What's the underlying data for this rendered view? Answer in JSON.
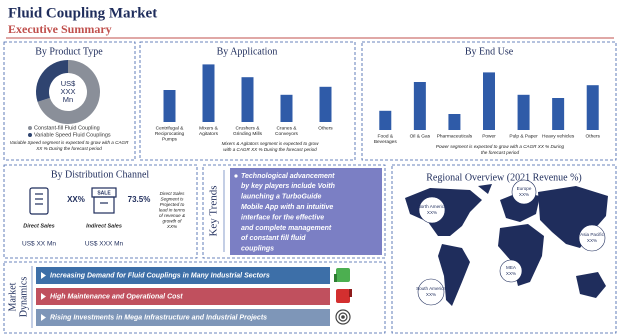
{
  "header": {
    "title": "Fluid Coupling Market",
    "subtitle": "Executive Summary"
  },
  "product_type": {
    "title": "By Product Type",
    "center_label": [
      "US$",
      "XXX",
      "Mn"
    ],
    "segments": [
      {
        "name": "Constant-fill Fluid Coupling",
        "value": 70,
        "color": "#8a8f99"
      },
      {
        "name": "Variable Speed Fluid Couplings",
        "value": 30,
        "color": "#2f4470"
      }
    ],
    "note": [
      "Variable Speed segment is expected to grow with a CAGR",
      "XX % During the forecast period"
    ]
  },
  "application": {
    "title": "By Application",
    "color": "#2f5ba8",
    "categories": [
      [
        "Centrifugal &",
        "Reciprocating",
        "Pumps"
      ],
      [
        "Mixers &",
        "Agitators"
      ],
      [
        "Crushers &",
        "Grinding Mills"
      ],
      [
        "Cranes &",
        "Conveyors"
      ],
      [
        "Others"
      ]
    ],
    "values": [
      20,
      36,
      28,
      17,
      22
    ],
    "note": [
      "Mixers & Agitators segment is expected to grow",
      "with a CAGR XX % During the forecast period"
    ]
  },
  "end_use": {
    "title": "By End Use",
    "color": "#2f5ba8",
    "categories": [
      [
        "Food &",
        "Beverages"
      ],
      [
        "Oil & Gas"
      ],
      [
        "Pharmaceuticals"
      ],
      [
        "Power"
      ],
      [
        "Pulp & Paper"
      ],
      [
        "Heavy vehicles"
      ],
      [
        "Others"
      ]
    ],
    "values": [
      12,
      30,
      10,
      36,
      22,
      20,
      28
    ],
    "note": [
      "Power segment is expected to grow with a CAGR XX % During",
      "the forecast period"
    ]
  },
  "distribution": {
    "title": "By Distribution Channel",
    "channels": [
      {
        "label": "Direct Sales",
        "share": "XX%",
        "revenue": "US$ XX Mn"
      },
      {
        "label": "Indirect Sales",
        "share": "73.5%",
        "revenue": "US$ XXX Mn"
      }
    ],
    "note": [
      "Direct Sales",
      "Segment is",
      "Projected to",
      "lead in terms",
      "of revenue &",
      "growth of",
      "XX%"
    ]
  },
  "key_trends": {
    "title": "Key Trends",
    "text": [
      "Technological advancement",
      "by key players include Voith",
      "launching a TurboGuide",
      "Mobile App with an intuitive",
      "interface for the effective",
      "and complete management",
      "of constant fill fluid",
      "couplings"
    ]
  },
  "regional": {
    "title": "Regional Overview (2021 Revenue %)",
    "regions": [
      {
        "name": "North America",
        "share": "XX%"
      },
      {
        "name": "Europe",
        "share": "XX%"
      },
      {
        "name": "Asia Pacific",
        "share": "XX%"
      },
      {
        "name": "MEA",
        "share": "XX%"
      },
      {
        "name": "South America",
        "share": "XX%"
      }
    ]
  },
  "dynamics": {
    "title": [
      "Market",
      "Dynamics"
    ],
    "items": [
      {
        "text": "Increasing Demand for Fluid Couplings in Many Industrial Sectors",
        "color": "#3d6fa8"
      },
      {
        "text": "High Maintenance and Operational Cost",
        "color": "#c0505e"
      },
      {
        "text": "Rising Investments in Mega Infrastructure and Industrial Projects",
        "color": "#7e96b8"
      }
    ]
  }
}
